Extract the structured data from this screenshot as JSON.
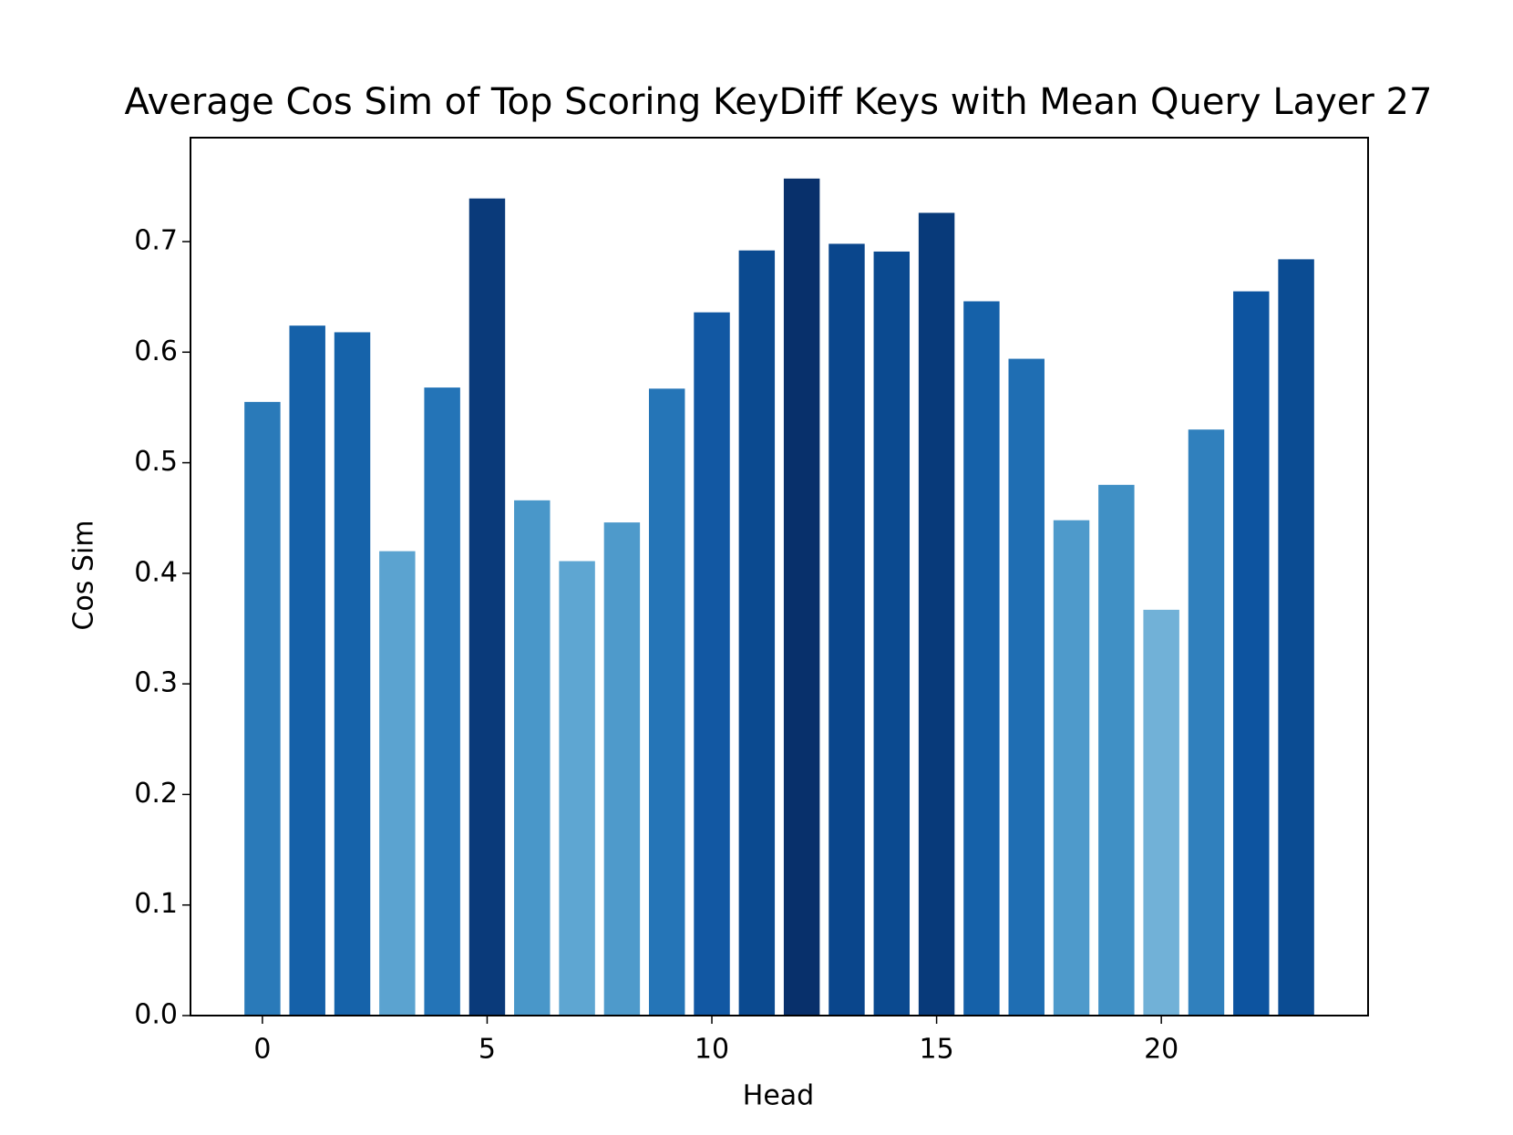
{
  "chart_data": {
    "type": "bar",
    "title": "Average Cos Sim of Top Scoring KeyDiff Keys with Mean Query Layer 27",
    "x_label": "Head",
    "y_label": "Cos Sim",
    "x": [
      0,
      1,
      2,
      3,
      4,
      5,
      6,
      7,
      8,
      9,
      10,
      11,
      12,
      13,
      14,
      15,
      16,
      17,
      18,
      19,
      20,
      21,
      22,
      23
    ],
    "values": [
      0.555,
      0.624,
      0.618,
      0.42,
      0.568,
      0.739,
      0.466,
      0.411,
      0.446,
      0.567,
      0.636,
      0.692,
      0.757,
      0.698,
      0.691,
      0.726,
      0.646,
      0.594,
      0.448,
      0.48,
      0.367,
      0.53,
      0.655,
      0.684
    ],
    "colors": [
      "#2a7ab9",
      "#1561a9",
      "#1663aa",
      "#5ba3d0",
      "#2474b7",
      "#0a3a7a",
      "#4997c9",
      "#5ea6d2",
      "#4e9acb",
      "#2575b7",
      "#1258a3",
      "#0b4a90",
      "#08306b",
      "#0a468c",
      "#0b4a90",
      "#083a7a",
      "#1561a9",
      "#1f6eb3",
      "#4e9acb",
      "#4090c5",
      "#71b1d7",
      "#3080bd",
      "#0d54a0",
      "#0b4c93"
    ],
    "xlim": [
      -1.6,
      24.6
    ],
    "xticks": [
      0,
      5,
      10,
      15,
      20
    ],
    "ylim": [
      0,
      0.794
    ],
    "yticks": [
      {
        "value": 0,
        "label": "0.0"
      },
      0.1,
      0.2,
      0.3,
      0.4,
      0.5,
      0.6,
      0.7
    ]
  }
}
